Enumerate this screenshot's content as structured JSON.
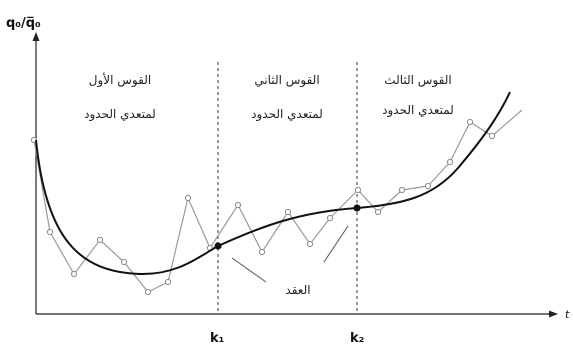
{
  "y_axis_label": "q₀/q̅₀",
  "x_axis_label": "t",
  "segments": [
    {
      "line1": "القوس الأول",
      "line2": "لمتعدي الحدود"
    },
    {
      "line1": "القوس الثاني",
      "line2": "لمتعدي الحدود"
    },
    {
      "line1": "القوس الثالث",
      "line2": "لمتعدي الحدود"
    }
  ],
  "knots_label": "العقد",
  "knot_names": [
    "k₁",
    "k₂"
  ],
  "colors": {
    "smooth_curve": "#111111",
    "raw_series": "#9a9a9a"
  }
}
